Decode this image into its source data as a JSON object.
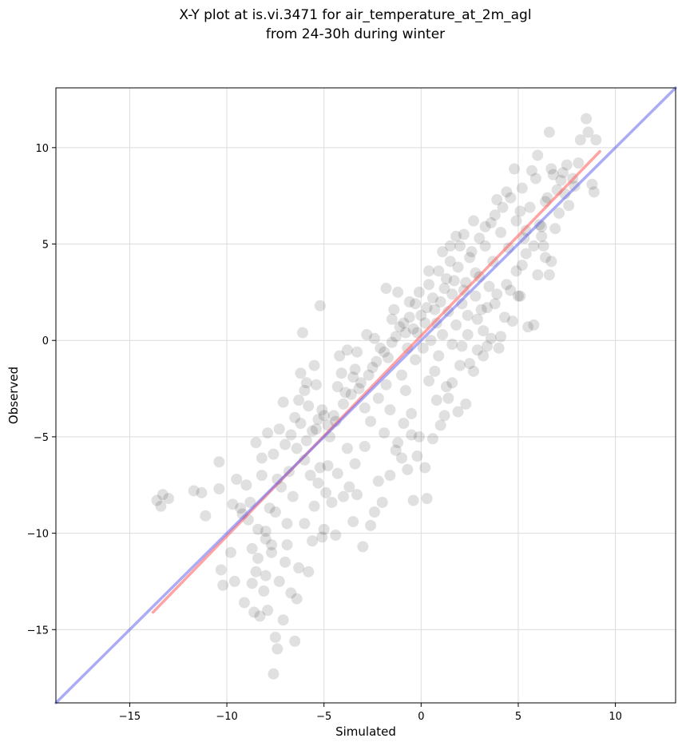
{
  "chart_data": {
    "type": "scatter",
    "title_lines": [
      "X-Y plot at is.vi.3471 for air_temperature_at_2m_agl",
      "from 24-30h during winter"
    ],
    "xlabel": "Simulated",
    "ylabel": "Observed",
    "xlim": [
      -18.8,
      13.1
    ],
    "ylim": [
      -18.8,
      13.1
    ],
    "xticks": [
      -15,
      -10,
      -5,
      0,
      5,
      10
    ],
    "yticks": [
      -15,
      -10,
      -5,
      0,
      5,
      10
    ],
    "xtick_labels": [
      "−15",
      "−10",
      "−5",
      "0",
      "5",
      "10"
    ],
    "ytick_labels": [
      "−15",
      "−10",
      "−5",
      "0",
      "5",
      "10"
    ],
    "grid": true,
    "point_color": "#000000",
    "point_alpha": 0.12,
    "points": [
      [
        -13.6,
        -8.3
      ],
      [
        -13.4,
        -8.6
      ],
      [
        -13.3,
        -8.0
      ],
      [
        -13.0,
        -8.2
      ],
      [
        -11.7,
        -7.8
      ],
      [
        -11.3,
        -7.9
      ],
      [
        -11.1,
        -9.1
      ],
      [
        -10.4,
        -6.3
      ],
      [
        -10.4,
        -7.7
      ],
      [
        -10.3,
        -11.9
      ],
      [
        -10.2,
        -12.7
      ],
      [
        -9.8,
        -11.0
      ],
      [
        -9.7,
        -8.5
      ],
      [
        -9.6,
        -12.5
      ],
      [
        -9.5,
        -7.2
      ],
      [
        -9.3,
        -8.7
      ],
      [
        -9.2,
        -9.0
      ],
      [
        -9.1,
        -13.6
      ],
      [
        -9.0,
        -7.5
      ],
      [
        -8.9,
        -9.3
      ],
      [
        -8.8,
        -8.4
      ],
      [
        -8.7,
        -10.8
      ],
      [
        -8.6,
        -14.1
      ],
      [
        -8.5,
        -12.0
      ],
      [
        -8.4,
        -9.8
      ],
      [
        -8.3,
        -14.3
      ],
      [
        -8.2,
        -7.0
      ],
      [
        -8.1,
        -13.0
      ],
      [
        -8.0,
        -10.3
      ],
      [
        -7.9,
        -14.0
      ],
      [
        -7.8,
        -8.7
      ],
      [
        -7.7,
        -11.0
      ],
      [
        -7.6,
        -17.3
      ],
      [
        -7.5,
        -15.4
      ],
      [
        -7.4,
        -16.0
      ],
      [
        -7.3,
        -12.5
      ],
      [
        -7.1,
        -14.5
      ],
      [
        -7.0,
        -11.5
      ],
      [
        -6.9,
        -10.6
      ],
      [
        -6.7,
        -13.1
      ],
      [
        -6.5,
        -15.6
      ],
      [
        -6.4,
        -13.4
      ],
      [
        -6.3,
        -11.8
      ],
      [
        -6.2,
        -1.7
      ],
      [
        -6.1,
        0.4
      ],
      [
        -6.0,
        -9.5
      ],
      [
        -5.9,
        -2.2
      ],
      [
        -5.8,
        -12.0
      ],
      [
        -5.6,
        -10.4
      ],
      [
        -5.5,
        -1.3
      ],
      [
        -5.3,
        -7.4
      ],
      [
        -5.2,
        1.8
      ],
      [
        -5.1,
        -10.2
      ],
      [
        -5.0,
        -9.8
      ],
      [
        -4.8,
        -6.5
      ],
      [
        -4.6,
        -8.4
      ],
      [
        -4.4,
        -10.1
      ],
      [
        -4.2,
        -0.8
      ],
      [
        -4.0,
        -8.1
      ],
      [
        -3.8,
        -0.5
      ],
      [
        -3.7,
        -7.6
      ],
      [
        -3.5,
        -9.4
      ],
      [
        -3.3,
        -8.0
      ],
      [
        -3.0,
        -10.7
      ],
      [
        -2.8,
        0.3
      ],
      [
        -2.6,
        -9.6
      ],
      [
        -2.4,
        -8.9
      ],
      [
        -2.2,
        -7.3
      ],
      [
        -2.0,
        -8.4
      ],
      [
        -1.8,
        2.7
      ],
      [
        -1.6,
        -7.0
      ],
      [
        -1.4,
        1.6
      ],
      [
        -1.3,
        -5.7
      ],
      [
        -1.2,
        2.5
      ],
      [
        -1.0,
        -6.1
      ],
      [
        -0.9,
        -4.3
      ],
      [
        -0.7,
        -6.7
      ],
      [
        -0.5,
        -4.9
      ],
      [
        -0.4,
        -8.3
      ],
      [
        -0.2,
        -6.0
      ],
      [
        -0.1,
        -5.0
      ],
      [
        0.2,
        -6.6
      ],
      [
        0.3,
        -8.2
      ],
      [
        0.4,
        -2.1
      ],
      [
        0.6,
        -5.1
      ],
      [
        0.8,
        -3.1
      ],
      [
        1.0,
        -4.4
      ],
      [
        1.2,
        -3.9
      ],
      [
        1.4,
        -3.0
      ],
      [
        1.6,
        -2.2
      ],
      [
        1.9,
        -3.7
      ],
      [
        2.1,
        -0.3
      ],
      [
        2.3,
        -3.3
      ],
      [
        2.5,
        -1.2
      ],
      [
        2.7,
        -1.6
      ],
      [
        2.9,
        -0.5
      ],
      [
        3.2,
        0.5
      ],
      [
        3.4,
        -0.3
      ],
      [
        3.6,
        0.1
      ],
      [
        3.8,
        1.9
      ],
      [
        4.1,
        0.2
      ],
      [
        4.3,
        1.2
      ],
      [
        4.6,
        2.6
      ],
      [
        5.0,
        2.3
      ],
      [
        5.2,
        3.9
      ],
      [
        5.5,
        0.7
      ],
      [
        5.8,
        0.8
      ],
      [
        6.0,
        3.4
      ],
      [
        6.2,
        5.4
      ],
      [
        6.4,
        4.3
      ],
      [
        6.6,
        10.8
      ],
      [
        6.3,
        4.9
      ],
      [
        6.6,
        3.4
      ],
      [
        6.7,
        4.1
      ],
      [
        6.9,
        5.8
      ],
      [
        7.1,
        6.6
      ],
      [
        7.4,
        7.6
      ],
      [
        7.6,
        7.0
      ],
      [
        7.9,
        8.0
      ],
      [
        8.2,
        10.4
      ],
      [
        8.5,
        11.5
      ],
      [
        8.6,
        10.8
      ],
      [
        8.8,
        8.1
      ],
      [
        8.9,
        7.7
      ],
      [
        9.0,
        10.4
      ],
      [
        6.4,
        7.2
      ],
      [
        6.8,
        8.6
      ],
      [
        7.2,
        8.3
      ],
      [
        7.5,
        9.1
      ],
      [
        5.7,
        8.8
      ],
      [
        6.0,
        9.6
      ],
      [
        4.8,
        8.9
      ],
      [
        4.4,
        7.7
      ],
      [
        5.1,
        6.7
      ],
      [
        3.9,
        7.3
      ],
      [
        5.4,
        5.7
      ],
      [
        3.8,
        6.5
      ],
      [
        2.7,
        6.2
      ],
      [
        3.3,
        5.9
      ],
      [
        1.8,
        5.4
      ],
      [
        2.5,
        4.3
      ],
      [
        2.0,
        4.9
      ],
      [
        1.5,
        4.1
      ],
      [
        1.7,
        3.1
      ],
      [
        2.2,
        2.6
      ],
      [
        2.8,
        3.5
      ],
      [
        1.2,
        2.7
      ],
      [
        0.9,
        3.6
      ],
      [
        0.4,
        2.9
      ],
      [
        0.7,
        1.6
      ],
      [
        0.2,
        0.9
      ],
      [
        -0.3,
        1.9
      ],
      [
        -0.1,
        2.5
      ],
      [
        -0.6,
        1.2
      ],
      [
        -0.8,
        0.4
      ],
      [
        -1.1,
        0.7
      ],
      [
        -1.5,
        -0.1
      ],
      [
        -1.9,
        -0.6
      ],
      [
        -2.3,
        -1.1
      ],
      [
        -2.7,
        -1.8
      ],
      [
        -3.1,
        -2.2
      ],
      [
        -3.4,
        -1.5
      ],
      [
        -3.6,
        -2.8
      ],
      [
        -4.0,
        -3.3
      ],
      [
        -4.3,
        -2.4
      ],
      [
        -4.5,
        -3.9
      ],
      [
        -4.8,
        -4.4
      ],
      [
        -5.1,
        -3.6
      ],
      [
        -5.3,
        -4.1
      ],
      [
        -5.6,
        -4.7
      ],
      [
        -5.9,
        -5.2
      ],
      [
        -6.2,
        -4.3
      ],
      [
        -6.4,
        -5.6
      ],
      [
        -6.7,
        -4.9
      ],
      [
        -7.0,
        -5.4
      ],
      [
        -7.3,
        -4.6
      ],
      [
        -7.6,
        -5.9
      ],
      [
        -7.9,
        -4.8
      ],
      [
        -8.2,
        -6.1
      ],
      [
        -8.5,
        -5.3
      ],
      [
        -4.7,
        -5.0
      ],
      [
        -5.4,
        -4.6
      ],
      [
        -5.0,
        -3.9
      ],
      [
        -4.4,
        -4.2
      ],
      [
        -5.8,
        -3.4
      ],
      [
        -6.5,
        -4.0
      ],
      [
        -3.9,
        -2.7
      ],
      [
        -3.5,
        -1.9
      ],
      [
        -3.2,
        -2.5
      ],
      [
        -2.5,
        -1.4
      ],
      [
        -2.1,
        -0.4
      ],
      [
        -1.7,
        -0.9
      ],
      [
        -1.3,
        0.2
      ],
      [
        -0.9,
        0.9
      ],
      [
        -0.4,
        0.6
      ],
      [
        0.0,
        1.3
      ],
      [
        0.3,
        1.7
      ],
      [
        0.6,
        2.2
      ],
      [
        1.0,
        2.0
      ],
      [
        1.3,
        3.2
      ],
      [
        1.6,
        2.4
      ],
      [
        1.9,
        3.8
      ],
      [
        2.3,
        3.0
      ],
      [
        2.6,
        4.6
      ],
      [
        3.0,
        3.3
      ],
      [
        3.3,
        4.9
      ],
      [
        3.7,
        4.1
      ],
      [
        4.1,
        5.6
      ],
      [
        4.5,
        4.8
      ],
      [
        4.9,
        6.2
      ],
      [
        5.3,
        5.3
      ],
      [
        5.6,
        6.9
      ],
      [
        6.1,
        6.0
      ],
      [
        6.5,
        7.4
      ],
      [
        7.0,
        7.8
      ],
      [
        7.3,
        8.7
      ],
      [
        7.8,
        8.4
      ],
      [
        8.1,
        9.2
      ],
      [
        0.5,
        0.0
      ],
      [
        0.1,
        -0.4
      ],
      [
        -0.2,
        0.4
      ],
      [
        0.8,
        0.9
      ],
      [
        1.1,
        0.3
      ],
      [
        1.4,
        1.5
      ],
      [
        1.8,
        0.8
      ],
      [
        2.1,
        1.9
      ],
      [
        2.4,
        1.3
      ],
      [
        2.8,
        2.3
      ],
      [
        3.1,
        1.6
      ],
      [
        3.5,
        2.8
      ],
      [
        -2.9,
        -3.5
      ],
      [
        -2.6,
        -4.2
      ],
      [
        -2.2,
        -3.0
      ],
      [
        -1.9,
        -4.8
      ],
      [
        -1.6,
        -3.6
      ],
      [
        -1.2,
        -5.3
      ],
      [
        -0.8,
        -2.6
      ],
      [
        -0.5,
        -3.8
      ],
      [
        -1.0,
        -1.8
      ],
      [
        -1.8,
        -2.3
      ],
      [
        -6.8,
        -6.8
      ],
      [
        -7.2,
        -7.6
      ],
      [
        -6.6,
        -8.1
      ],
      [
        -7.5,
        -8.9
      ],
      [
        -6.9,
        -9.5
      ],
      [
        -8.0,
        -9.9
      ],
      [
        -7.7,
        -10.6
      ],
      [
        -8.4,
        -11.3
      ],
      [
        -8.7,
        -12.6
      ],
      [
        -8.0,
        -12.2
      ],
      [
        -7.4,
        -7.2
      ],
      [
        -6.0,
        -6.2
      ],
      [
        -5.7,
        -7.0
      ],
      [
        -5.2,
        -6.6
      ],
      [
        -5.5,
        -8.6
      ],
      [
        -4.9,
        -7.9
      ],
      [
        -4.3,
        -6.9
      ],
      [
        -3.8,
        -5.6
      ],
      [
        -3.4,
        -6.4
      ],
      [
        -2.9,
        -5.5
      ],
      [
        -6.3,
        -3.1
      ],
      [
        -7.1,
        -3.2
      ],
      [
        -6.0,
        -2.6
      ],
      [
        -5.4,
        -2.3
      ],
      [
        -4.1,
        -1.7
      ],
      [
        -3.3,
        -0.6
      ],
      [
        -2.4,
        0.1
      ],
      [
        -1.5,
        1.1
      ],
      [
        -0.6,
        2.0
      ],
      [
        0.4,
        3.6
      ],
      [
        1.1,
        4.6
      ],
      [
        1.5,
        4.9
      ],
      [
        2.2,
        5.5
      ],
      [
        3.0,
        5.3
      ],
      [
        3.6,
        6.1
      ],
      [
        4.2,
        6.9
      ],
      [
        4.6,
        7.4
      ],
      [
        5.2,
        7.9
      ],
      [
        5.9,
        8.4
      ],
      [
        6.7,
        8.9
      ],
      [
        2.9,
        1.1
      ],
      [
        3.4,
        1.7
      ],
      [
        3.9,
        2.4
      ],
      [
        4.4,
        2.9
      ],
      [
        4.9,
        3.6
      ],
      [
        5.4,
        4.5
      ],
      [
        5.8,
        4.9
      ],
      [
        6.2,
        5.9
      ],
      [
        3.2,
        -0.8
      ],
      [
        4.0,
        -0.4
      ],
      [
        4.7,
        1.0
      ],
      [
        5.1,
        2.3
      ],
      [
        2.0,
        -1.3
      ],
      [
        1.3,
        -2.4
      ],
      [
        0.7,
        -1.6
      ],
      [
        0.9,
        -0.8
      ],
      [
        1.6,
        -0.2
      ],
      [
        2.4,
        0.3
      ],
      [
        -0.3,
        -1.0
      ],
      [
        -0.7,
        -0.4
      ]
    ],
    "lines": [
      {
        "color": "#ff6666",
        "alpha": 0.6,
        "points": [
          [
            -13.8,
            -14.1
          ],
          [
            9.2,
            9.8
          ]
        ]
      },
      {
        "color": "#6666ee",
        "alpha": 0.55,
        "points": [
          [
            -18.8,
            -18.8
          ],
          [
            13.1,
            13.1
          ]
        ]
      }
    ]
  }
}
